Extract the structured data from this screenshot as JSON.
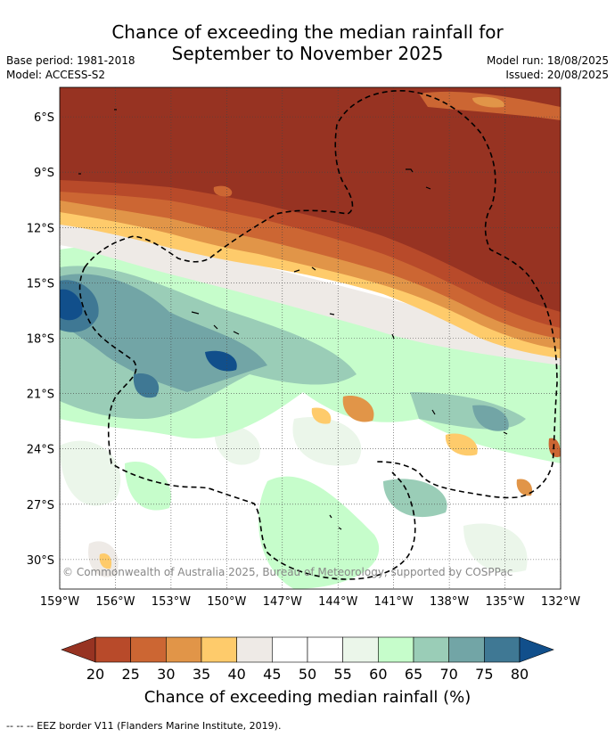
{
  "title_line1": "Chance of exceeding the median rainfall for",
  "title_line2": "September to November 2025",
  "base_period": "Base period: 1981-2018",
  "model": "Model: ACCESS-S2",
  "model_run": "Model run: 18/08/2025",
  "issued": "Issued: 20/08/2025",
  "copyright": "© Commonwealth of Australia 2025, Bureau of Meteorology, supported by COSPPac",
  "footer": "--  --  -- EEZ border V11 (Flanders Marine Institute, 2019).",
  "map": {
    "lat_labels": [
      "6°S",
      "9°S",
      "12°S",
      "15°S",
      "18°S",
      "21°S",
      "24°S",
      "27°S",
      "30°S"
    ],
    "lon_labels": [
      "159°W",
      "156°W",
      "153°W",
      "150°W",
      "147°W",
      "144°W",
      "141°W",
      "138°W",
      "135°W",
      "132°W"
    ],
    "lat_values": [
      -6,
      -9,
      -12,
      -15,
      -18,
      -21,
      -24,
      -27,
      -30
    ],
    "lon_values": [
      -159,
      -156,
      -153,
      -150,
      -147,
      -144,
      -141,
      -138,
      -135,
      -132
    ],
    "lat_range": [
      -31.6,
      -4.4
    ],
    "lon_range": [
      -159,
      -132
    ],
    "gridlines": true
  },
  "legend": {
    "label": "Chance of exceeding median rainfall (%)",
    "ticks": [
      "20",
      "25",
      "30",
      "35",
      "40",
      "45",
      "50",
      "55",
      "60",
      "65",
      "70",
      "75",
      "80"
    ],
    "colors": [
      "#973322",
      "#b84a2a",
      "#cc6633",
      "#e19548",
      "#fecb6b",
      "#eeeae6",
      "#ffffff",
      "#ffffff",
      "#ebf6ea",
      "#c6fdcb",
      "#9acdb7",
      "#72a5a6",
      "#3f7894",
      "#114f8b"
    ]
  }
}
